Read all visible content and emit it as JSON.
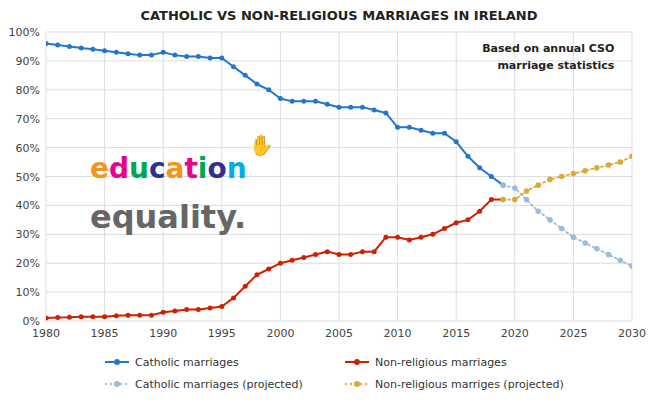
{
  "chart_data": {
    "type": "line",
    "title": "CATHOLIC VS NON-RELIGIOUS MARRIAGES IN IRELAND",
    "annotations": [
      {
        "text": "Based on annual CSO"
      },
      {
        "text": "marriage statistics"
      },
      {
        "text": "education",
        "colors": [
          "#f7941d",
          "#ec008c",
          "#00a651",
          "#2e3192",
          "#f7941d",
          "#ec008c",
          "#00a651",
          "#2e3192",
          "#00aeef"
        ]
      },
      {
        "text": "✋",
        "color": "#00aeef"
      },
      {
        "text": "equality.",
        "color": "#666666"
      }
    ],
    "series": [
      {
        "name": "Catholic marriages",
        "color": "#2277cc",
        "line_style": "solid",
        "marker": "circle",
        "x": [
          1980,
          1981,
          1982,
          1983,
          1984,
          1985,
          1986,
          1987,
          1988,
          1989,
          1990,
          1991,
          1992,
          1993,
          1994,
          1995,
          1996,
          1997,
          1998,
          1999,
          2000,
          2001,
          2002,
          2003,
          2004,
          2005,
          2006,
          2007,
          2008,
          2009,
          2010,
          2011,
          2012,
          2013,
          2014,
          2015,
          2016,
          2017,
          2018,
          2019
        ],
        "values": [
          96,
          95.5,
          95,
          94.5,
          94,
          93.5,
          93,
          92.5,
          92,
          92,
          93,
          92,
          91.5,
          91.5,
          91,
          91,
          88,
          85,
          82,
          80,
          77,
          76,
          76,
          76,
          75,
          74,
          74,
          74,
          73,
          72,
          67,
          67,
          66,
          65,
          65,
          62,
          57,
          53,
          50,
          47
        ]
      },
      {
        "name": "Non-religious marriages",
        "color": "#cc2200",
        "line_style": "solid",
        "marker": "circle",
        "x": [
          1980,
          1981,
          1982,
          1983,
          1984,
          1985,
          1986,
          1987,
          1988,
          1989,
          1990,
          1991,
          1992,
          1993,
          1994,
          1995,
          1996,
          1997,
          1998,
          1999,
          2000,
          2001,
          2002,
          2003,
          2004,
          2005,
          2006,
          2007,
          2008,
          2009,
          2010,
          2011,
          2012,
          2013,
          2014,
          2015,
          2016,
          2017,
          2018,
          2019
        ],
        "values": [
          1,
          1.2,
          1.3,
          1.5,
          1.5,
          1.5,
          1.8,
          2,
          2,
          2,
          3,
          3.5,
          4,
          4,
          4.5,
          5,
          8,
          12,
          16,
          18,
          20,
          21,
          22,
          23,
          24,
          23,
          23,
          24,
          24,
          29,
          29,
          28,
          29,
          30,
          32,
          34,
          35,
          38,
          42,
          42
        ]
      },
      {
        "name": "Catholic marriages (projected)",
        "color": "#99bbdd",
        "line_style": "dotted",
        "marker": "circle",
        "x": [
          2019,
          2020,
          2021,
          2022,
          2023,
          2024,
          2025,
          2026,
          2027,
          2028,
          2029,
          2030
        ],
        "values": [
          47,
          46,
          42,
          38,
          35,
          32,
          29,
          27,
          25,
          23,
          21,
          19
        ]
      },
      {
        "name": "Non-religious marriges (projected)",
        "color": "#ddaa33",
        "line_style": "dotted",
        "marker": "circle",
        "x": [
          2019,
          2020,
          2021,
          2022,
          2023,
          2024,
          2025,
          2026,
          2027,
          2028,
          2029,
          2030
        ],
        "values": [
          42,
          42,
          45,
          47,
          49,
          50,
          51,
          52,
          53,
          54,
          55,
          57
        ]
      }
    ],
    "xlim": [
      1980,
      2030
    ],
    "xticks": [
      1980,
      1985,
      1990,
      1995,
      2000,
      2005,
      2010,
      2015,
      2020,
      2025,
      2030
    ],
    "ylim": [
      0,
      100
    ],
    "yticks": [
      {
        "value": 0,
        "label": "0%"
      },
      {
        "value": 10,
        "label": "10%"
      },
      {
        "value": 20,
        "label": "20%"
      },
      {
        "value": 30,
        "label": "30%"
      },
      {
        "value": 40,
        "label": "40%"
      },
      {
        "value": 50,
        "label": "50%"
      },
      {
        "value": 60,
        "label": "60%"
      },
      {
        "value": 70,
        "label": "70%"
      },
      {
        "value": 80,
        "label": "80%"
      },
      {
        "value": 90,
        "label": "90%"
      },
      {
        "value": 100,
        "label": "100%"
      }
    ],
    "grid": true,
    "legend": "bottom"
  }
}
